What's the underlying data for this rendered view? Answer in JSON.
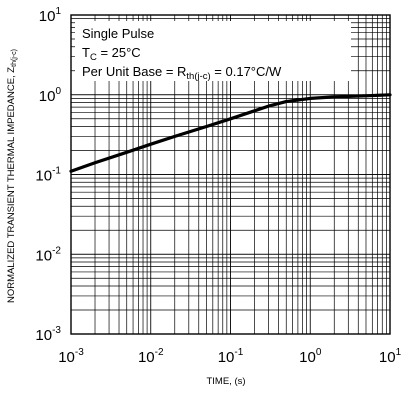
{
  "chart_data": {
    "type": "line",
    "xlabel": "TIME, (s)",
    "ylabel": "NORMALIZED TRANSIENT THERMAL IMPEDANCE, Z",
    "ylabel_sub": "th(j-c)",
    "x_scale": "log",
    "y_scale": "log",
    "xlim": [
      0.001,
      10
    ],
    "ylim": [
      0.001,
      10
    ],
    "grid": true,
    "x_ticks": [
      {
        "base": "10",
        "exp": "-3"
      },
      {
        "base": "10",
        "exp": "-2"
      },
      {
        "base": "10",
        "exp": "-1"
      },
      {
        "base": "10",
        "exp": "0"
      },
      {
        "base": "10",
        "exp": "1"
      }
    ],
    "y_ticks": [
      {
        "base": "10",
        "exp": "-3"
      },
      {
        "base": "10",
        "exp": "-2"
      },
      {
        "base": "10",
        "exp": "-1"
      },
      {
        "base": "10",
        "exp": "0"
      },
      {
        "base": "10",
        "exp": "1"
      }
    ],
    "legend": {
      "line1": "Single Pulse",
      "line2_main": "T",
      "line2_sub": "C",
      "line2_rest": " = 25°C",
      "line3_main": "Per Unit Base = R",
      "line3_sub": "th(j-c)",
      "line3_rest": " = 0.17°C/W"
    },
    "series": [
      {
        "x": [
          0.001,
          0.002,
          0.005,
          0.01,
          0.02,
          0.05,
          0.1,
          0.2,
          0.3,
          0.5,
          0.7,
          1,
          2,
          5,
          10
        ],
        "y": [
          0.11,
          0.14,
          0.19,
          0.24,
          0.3,
          0.4,
          0.5,
          0.63,
          0.72,
          0.82,
          0.86,
          0.9,
          0.94,
          0.97,
          1.0
        ]
      }
    ]
  }
}
